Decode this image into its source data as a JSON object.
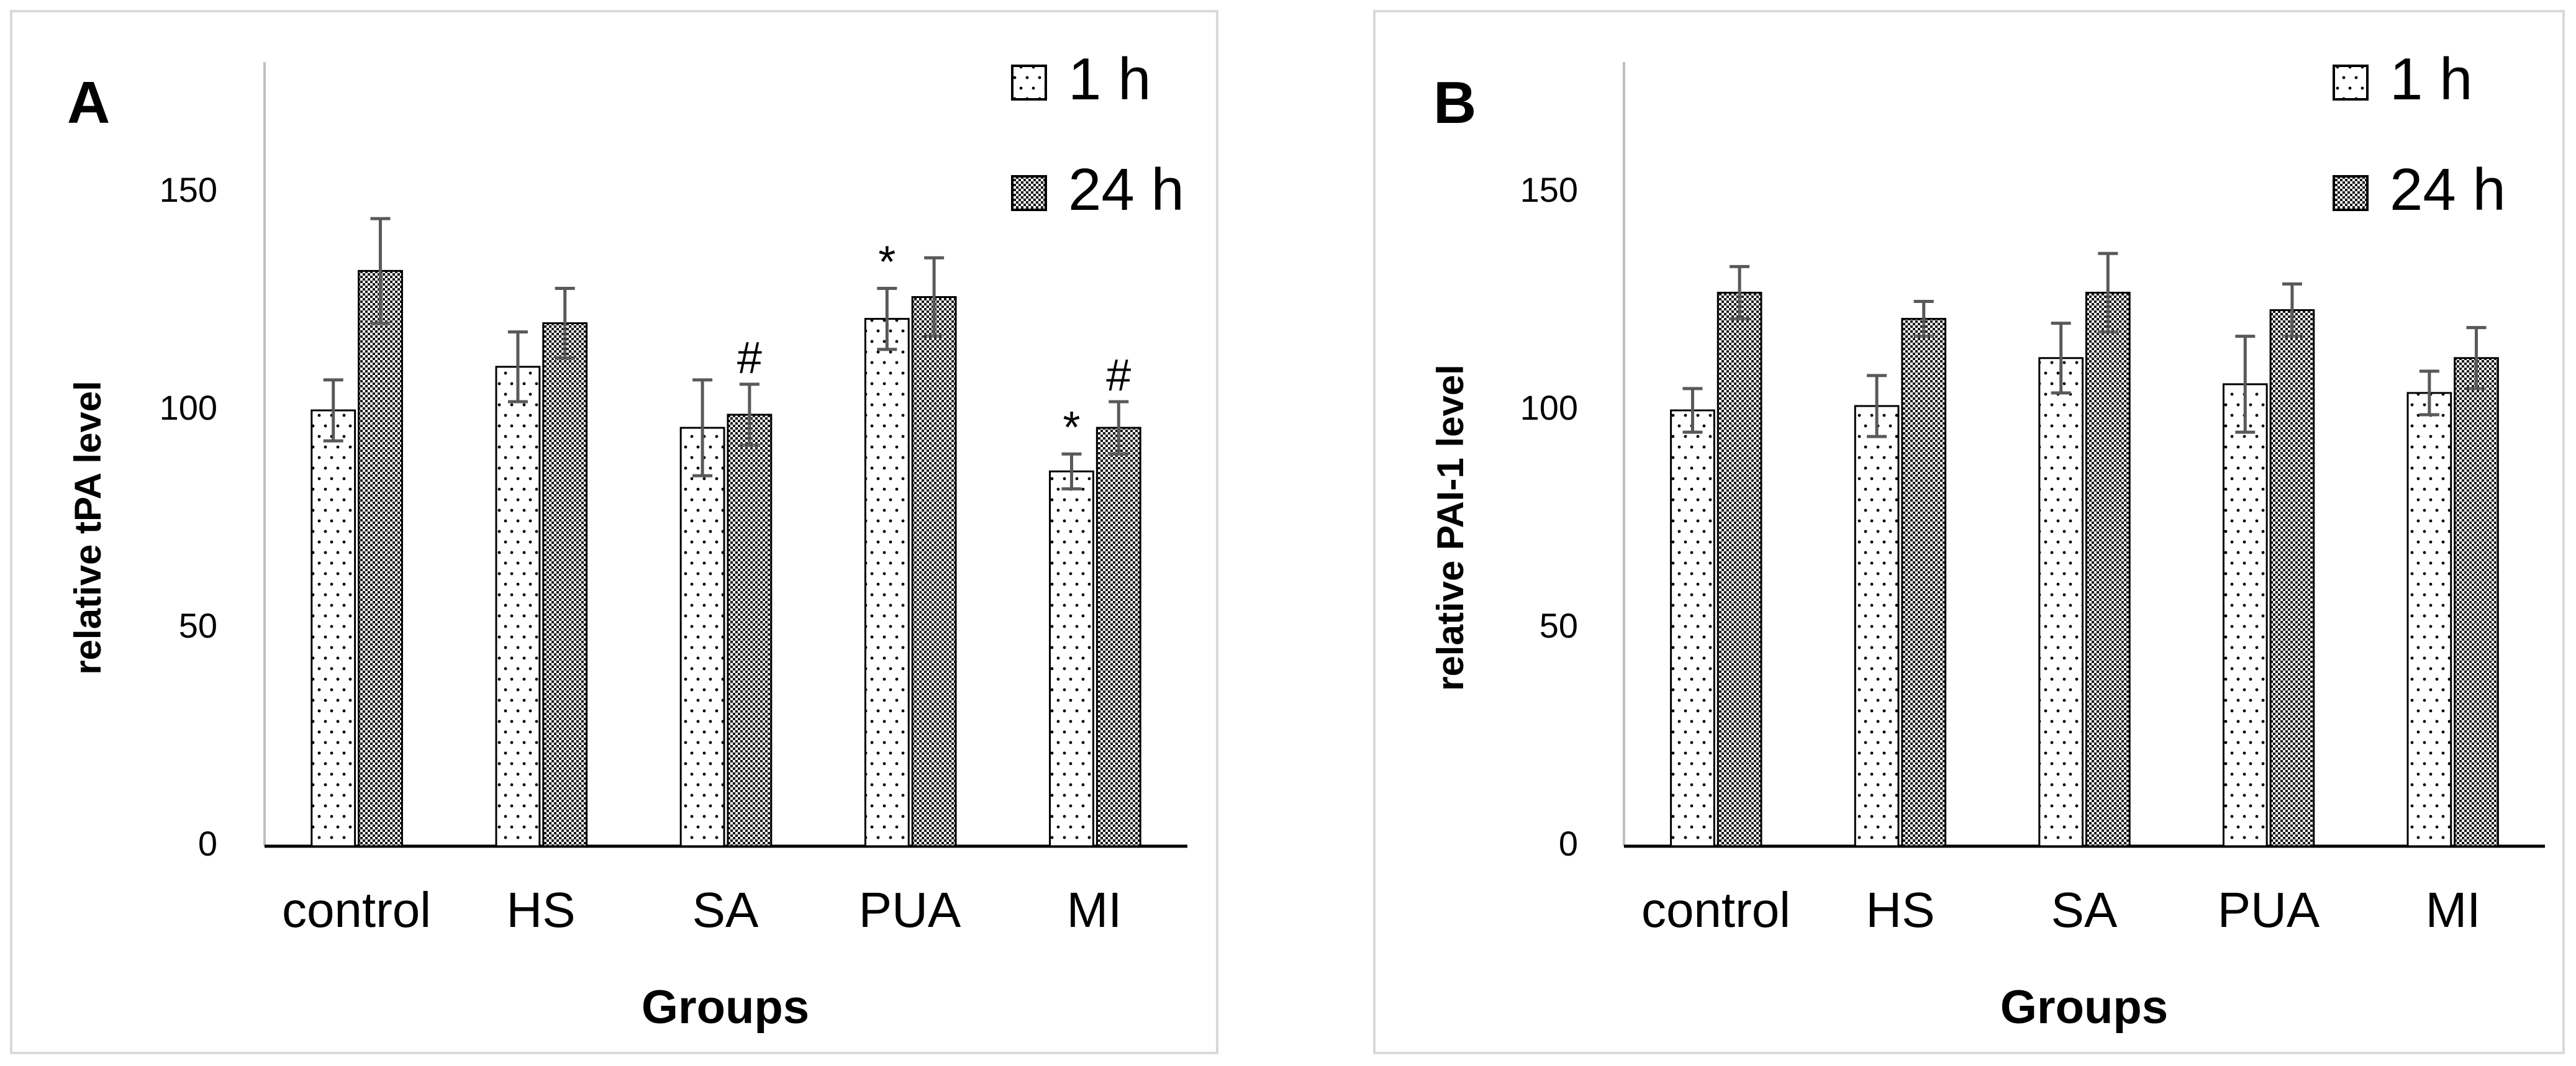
{
  "chart_data": [
    {
      "type": "bar",
      "panel_label": "A",
      "title": "",
      "xlabel": "Groups",
      "ylabel": "relative tPA level",
      "ylim": [
        0,
        180
      ],
      "yticks": [
        0,
        50,
        100,
        150
      ],
      "categories": [
        "control",
        "HS",
        "SA",
        "PUA",
        "MI"
      ],
      "legend_position": "top-right",
      "grid": false,
      "series": [
        {
          "name": "1 h",
          "pattern": "dots",
          "values": [
            100,
            110,
            96,
            121,
            86
          ],
          "errors": [
            7,
            8,
            11,
            7,
            4
          ],
          "annotations": [
            "",
            "",
            "",
            "*",
            "*"
          ]
        },
        {
          "name": "24 h",
          "pattern": "checker",
          "values": [
            132,
            120,
            99,
            126,
            96
          ],
          "errors": [
            12,
            8,
            7,
            9,
            6
          ],
          "annotations": [
            "",
            "",
            "#",
            "",
            "#"
          ]
        }
      ]
    },
    {
      "type": "bar",
      "panel_label": "B",
      "title": "",
      "xlabel": "Groups",
      "ylabel": "relative PAI-1 level",
      "ylim": [
        0,
        180
      ],
      "yticks": [
        0,
        50,
        100,
        150
      ],
      "categories": [
        "control",
        "HS",
        "SA",
        "PUA",
        "MI"
      ],
      "legend_position": "top-right",
      "grid": false,
      "series": [
        {
          "name": "1 h",
          "pattern": "dots",
          "values": [
            100,
            101,
            112,
            106,
            104
          ],
          "errors": [
            5,
            7,
            8,
            11,
            5
          ],
          "annotations": [
            "",
            "",
            "",
            "",
            ""
          ]
        },
        {
          "name": "24 h",
          "pattern": "checker",
          "values": [
            127,
            121,
            127,
            123,
            112
          ],
          "errors": [
            6,
            4,
            9,
            6,
            7
          ],
          "annotations": [
            "",
            "",
            "",
            "",
            ""
          ]
        }
      ]
    }
  ],
  "colors": {
    "bar_outline": "#000000",
    "pattern_ink": "#000000",
    "error_bar": "#595959",
    "axis": "#000000",
    "axis_left": "#bfbfbf",
    "panel_border": "#d9d9d9",
    "text": "#000000"
  }
}
